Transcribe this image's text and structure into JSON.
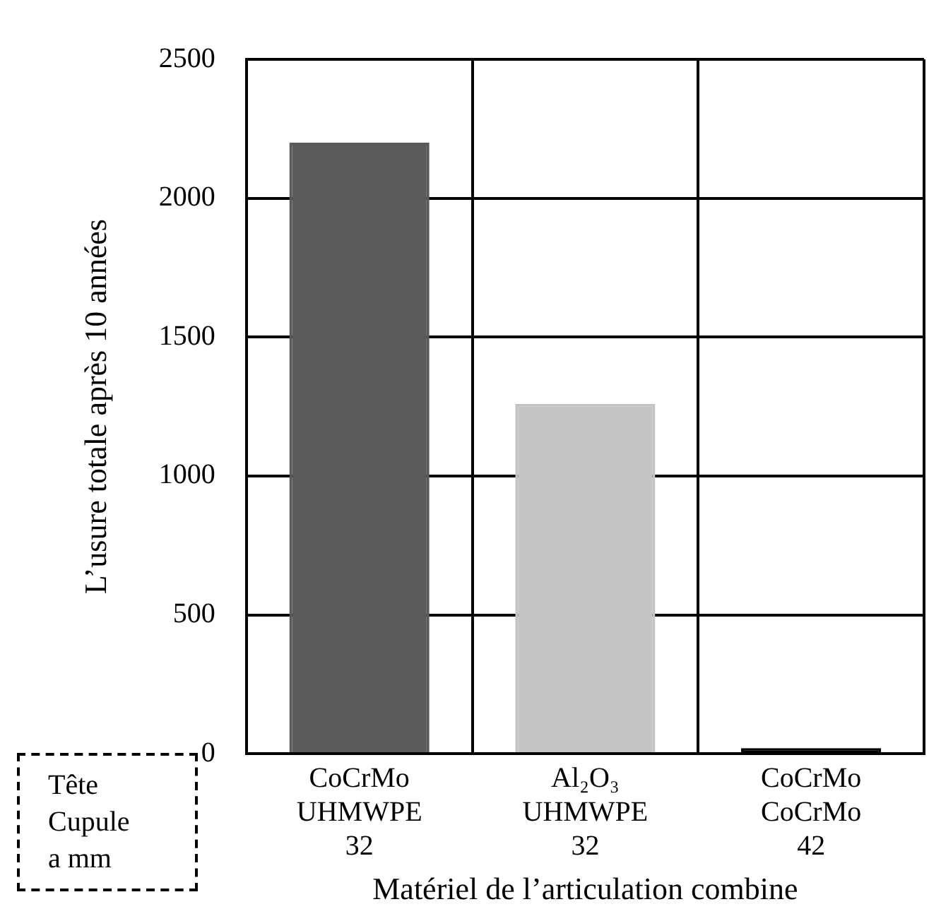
{
  "chart_data": {
    "type": "bar",
    "xlabel": "Matériel de l’articulation combine",
    "ylabel": "L’usure totale après 10 années",
    "categories": [
      "CoCrMo\nUHMWPE\n32",
      "Al₂O₃\nUHMWPE\n32",
      "CoCrMo\nCoCrMo\n42"
    ],
    "values": [
      2200,
      1260,
      20
    ],
    "colors": [
      "#5a5a5a",
      "#c4c4c4",
      "#000000"
    ],
    "ylim": [
      0,
      2500
    ],
    "yticks": [
      0,
      500,
      1000,
      1500,
      2000,
      2500
    ],
    "grid": true,
    "annotations": [
      "Tête\nCupule\na mm"
    ]
  }
}
